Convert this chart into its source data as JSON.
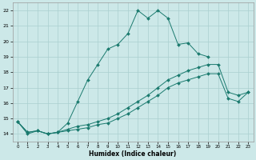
{
  "xlabel": "Humidex (Indice chaleur)",
  "bg_color": "#cce8e8",
  "line_color": "#1a7a6e",
  "grid_color": "#aacfcf",
  "xlim": [
    -0.5,
    23.5
  ],
  "ylim": [
    13.5,
    22.5
  ],
  "xticks": [
    0,
    1,
    2,
    3,
    4,
    5,
    6,
    7,
    8,
    9,
    10,
    11,
    12,
    13,
    14,
    15,
    16,
    17,
    18,
    19,
    20,
    21,
    22,
    23
  ],
  "yticks": [
    14,
    15,
    16,
    17,
    18,
    19,
    20,
    21,
    22
  ],
  "line1_x": [
    0,
    1,
    2,
    3,
    4,
    5,
    6,
    7,
    8,
    9,
    10,
    11,
    12,
    13,
    14,
    15,
    16,
    17,
    18,
    19
  ],
  "line1_y": [
    14.8,
    14.0,
    14.2,
    14.0,
    14.1,
    14.7,
    16.1,
    17.5,
    18.5,
    19.5,
    19.8,
    20.5,
    22.0,
    21.5,
    22.0,
    21.5,
    19.8,
    19.9,
    19.2,
    19.0
  ],
  "line2_x": [
    0,
    1,
    2,
    3,
    4,
    5,
    6,
    7,
    8,
    9,
    10,
    11,
    12,
    13,
    14,
    15,
    16,
    17,
    18,
    19,
    20,
    21,
    22,
    23
  ],
  "line2_y": [
    14.8,
    14.1,
    14.2,
    14.0,
    14.1,
    14.3,
    14.5,
    14.6,
    14.8,
    15.0,
    15.3,
    15.7,
    16.1,
    16.5,
    17.0,
    17.5,
    17.8,
    18.1,
    18.3,
    18.5,
    18.5,
    16.7,
    16.5,
    16.7
  ],
  "line3_x": [
    0,
    1,
    2,
    3,
    4,
    5,
    6,
    7,
    8,
    9,
    10,
    11,
    12,
    13,
    14,
    15,
    16,
    17,
    18,
    19,
    20,
    21,
    22,
    23
  ],
  "line3_y": [
    14.8,
    14.1,
    14.2,
    14.0,
    14.1,
    14.2,
    14.3,
    14.4,
    14.6,
    14.7,
    15.0,
    15.3,
    15.7,
    16.1,
    16.5,
    17.0,
    17.3,
    17.5,
    17.7,
    17.9,
    17.9,
    16.3,
    16.1,
    16.7
  ]
}
